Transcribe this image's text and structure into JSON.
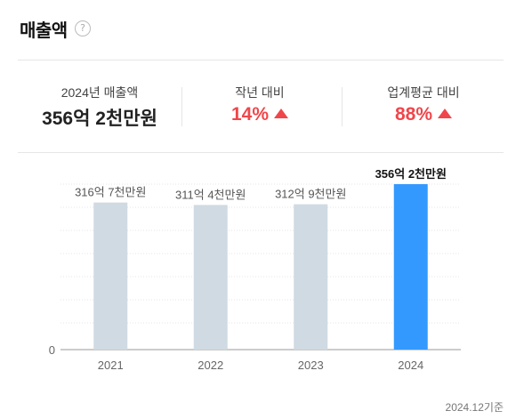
{
  "header": {
    "title": "매출액",
    "help_icon": "?"
  },
  "summary": [
    {
      "label": "2024년 매출액",
      "value": "356억 2천만원",
      "color": "#111111"
    },
    {
      "label": "작년 대비",
      "value": "14%",
      "color": "#f0464b",
      "trend": "up"
    },
    {
      "label": "업계평균 대비",
      "value": "88%",
      "color": "#f0464b",
      "trend": "up"
    }
  ],
  "chart_data": {
    "type": "bar",
    "categories": [
      "2021",
      "2022",
      "2023",
      "2024"
    ],
    "values": [
      316.7,
      311.4,
      312.9,
      356.2
    ],
    "value_labels": [
      "316억 7천만원",
      "311억 4천만원",
      "312억 9천만원",
      "356억 2천만원"
    ],
    "highlight_index": 3,
    "y_tick_labels": [
      "0"
    ],
    "ylim": [
      0,
      356.2
    ],
    "grid": true,
    "colors": {
      "bar": "#d0dae2",
      "highlight": "#3399ff"
    }
  },
  "footnote": "2024.12기준"
}
